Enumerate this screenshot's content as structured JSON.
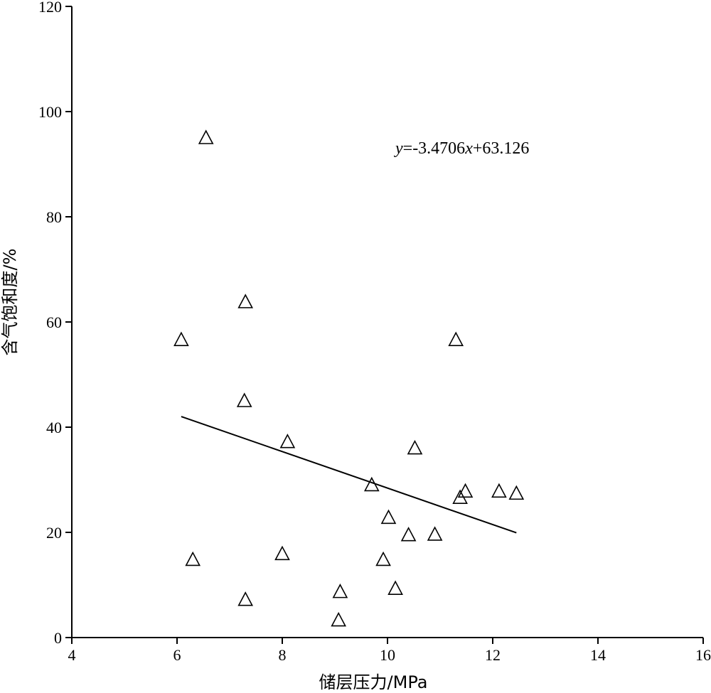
{
  "chart_data": {
    "type": "scatter",
    "xlabel": "储层压力/MPa",
    "ylabel": "含气饱和度/%",
    "xlim": [
      4,
      16
    ],
    "ylim": [
      0,
      120
    ],
    "xticks": [
      4,
      6,
      8,
      10,
      12,
      14,
      16
    ],
    "yticks": [
      0,
      20,
      40,
      60,
      80,
      100,
      120
    ],
    "marker": "triangle-open",
    "points": [
      {
        "x": 6.55,
        "y": 95.0
      },
      {
        "x": 7.3,
        "y": 63.8
      },
      {
        "x": 6.08,
        "y": 56.6
      },
      {
        "x": 11.3,
        "y": 56.6
      },
      {
        "x": 7.28,
        "y": 45.0
      },
      {
        "x": 8.1,
        "y": 37.2
      },
      {
        "x": 10.52,
        "y": 36.0
      },
      {
        "x": 9.7,
        "y": 29.0
      },
      {
        "x": 11.48,
        "y": 27.8
      },
      {
        "x": 11.38,
        "y": 26.6
      },
      {
        "x": 12.12,
        "y": 27.8
      },
      {
        "x": 12.45,
        "y": 27.4
      },
      {
        "x": 10.02,
        "y": 22.8
      },
      {
        "x": 10.4,
        "y": 19.5
      },
      {
        "x": 10.9,
        "y": 19.6
      },
      {
        "x": 6.3,
        "y": 14.8
      },
      {
        "x": 8.0,
        "y": 15.9
      },
      {
        "x": 9.92,
        "y": 14.8
      },
      {
        "x": 9.1,
        "y": 8.7
      },
      {
        "x": 10.15,
        "y": 9.3
      },
      {
        "x": 7.3,
        "y": 7.2
      },
      {
        "x": 9.07,
        "y": 3.3
      }
    ],
    "trendline": {
      "slope": -3.4706,
      "intercept": 63.126,
      "x_range": [
        6.08,
        12.45
      ],
      "equation_prefix": "y",
      "equation_middle": "=-3.4706",
      "equation_var": "x",
      "equation_suffix": "+63.126"
    }
  }
}
